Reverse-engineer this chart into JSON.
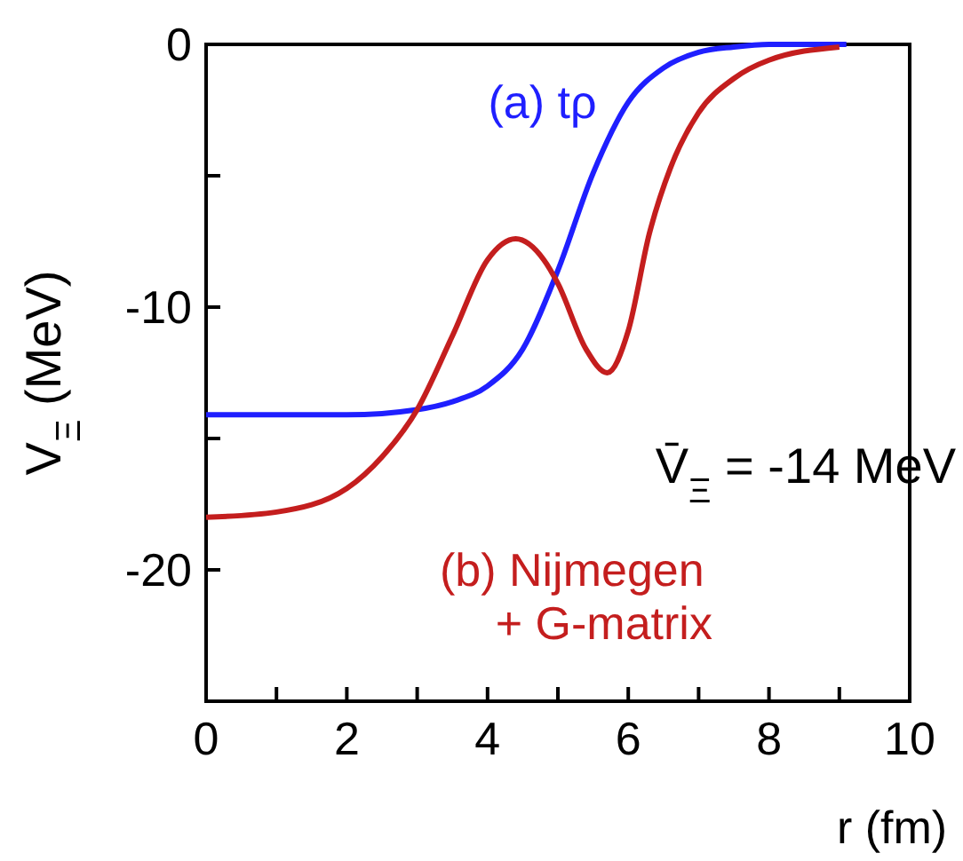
{
  "chart_data": {
    "type": "line",
    "xlabel": "r (fm)",
    "ylabel": "V$_{Ξ}$ (MeV)",
    "xlim": [
      0,
      10
    ],
    "ylim": [
      -25,
      0
    ],
    "xticks": [
      0,
      {
        "value": 1,
        "label": null
      },
      2,
      {
        "value": 3,
        "label": null
      },
      4,
      {
        "value": 5,
        "label": null
      },
      6,
      {
        "value": 7,
        "label": null
      },
      8,
      {
        "value": 9,
        "label": null
      },
      10
    ],
    "yticks": [
      0,
      {
        "value": -5,
        "label": null
      },
      -10,
      {
        "value": -15,
        "label": null
      },
      -20,
      {
        "value": -25,
        "label": null
      }
    ],
    "grid": false,
    "marker": "none",
    "line_style": "solid",
    "annotations": [
      "V̄$_{Ξ}$ = -14 MeV"
    ],
    "series": [
      {
        "name": "(a) tρ",
        "color": "#1f1fff",
        "x": [
          0,
          1,
          2,
          3,
          3.5,
          4,
          4.5,
          5,
          5.5,
          6,
          6.5,
          7,
          7.5,
          8,
          9.1
        ],
        "values": [
          -14.1,
          -14.1,
          -14.1,
          -13.9,
          -13.6,
          -13.0,
          -11.6,
          -8.6,
          -4.9,
          -2.2,
          -0.9,
          -0.3,
          -0.1,
          0,
          0
        ]
      },
      {
        "name": "(b) Nijmegen\n+ G-matrix",
        "color": "#c41e1e",
        "x": [
          0,
          1,
          2,
          2.5,
          3,
          3.5,
          4,
          4.4,
          4.8,
          5,
          5.4,
          5.7,
          6,
          6.3,
          6.6,
          7,
          7.5,
          8,
          9
        ],
        "values": [
          -18.0,
          -17.8,
          -16.9,
          -15.7,
          -13.9,
          -11.1,
          -8.2,
          -7.4,
          -8.2,
          -9.1,
          -11.6,
          -12.5,
          -10.9,
          -7.2,
          -4.7,
          -2.6,
          -1.3,
          -0.6,
          -0.1
        ]
      }
    ]
  }
}
